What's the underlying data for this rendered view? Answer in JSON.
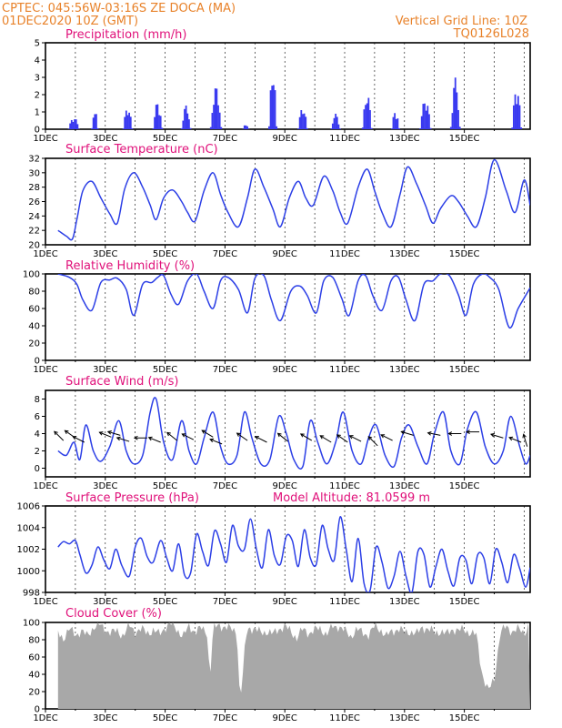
{
  "header": {
    "line1_left": "CPTEC:   045:56W-03:16S   ZE DOCA (MA)",
    "line2_left": "01DEC2020 10Z (GMT)",
    "line1_right": "Vertical Grid Line: 10Z",
    "line2_right": "TQ0126L028"
  },
  "colors": {
    "header": "#e8822a",
    "title": "#e0117a",
    "line": "#2c3fe6",
    "bar": "#3a3af0",
    "cloud": "#a8a8a8",
    "arrow": "#000000"
  },
  "x_tick_labels": [
    "1DEC",
    "3DEC",
    "5DEC",
    "7DEC",
    "9DEC",
    "11DEC",
    "13DEC",
    "15DEC"
  ],
  "model_altitude": "Model Altitude: 81.0599 m",
  "chart_data": [
    {
      "type": "bar",
      "title": "Precipitation (mm/h)",
      "ylim": [
        0,
        5
      ],
      "yticks": [
        "0",
        "1",
        "2",
        "3",
        "4",
        "5"
      ],
      "x_unit": "days since 01DEC 00Z",
      "events": [
        {
          "x": 0.95,
          "peak": 0.7,
          "width": 0.35
        },
        {
          "x": 1.65,
          "peak": 1.2,
          "width": 0.2
        },
        {
          "x": 2.75,
          "peak": 1.3,
          "width": 0.3
        },
        {
          "x": 3.75,
          "peak": 1.6,
          "width": 0.3
        },
        {
          "x": 4.7,
          "peak": 1.4,
          "width": 0.3
        },
        {
          "x": 5.7,
          "peak": 2.5,
          "width": 0.35
        },
        {
          "x": 6.7,
          "peak": 0.3,
          "width": 0.2
        },
        {
          "x": 7.6,
          "peak": 3.6,
          "width": 0.25
        },
        {
          "x": 8.6,
          "peak": 1.3,
          "width": 0.3
        },
        {
          "x": 9.7,
          "peak": 0.9,
          "width": 0.3
        },
        {
          "x": 10.75,
          "peak": 2.1,
          "width": 0.3
        },
        {
          "x": 11.7,
          "peak": 1.1,
          "width": 0.25
        },
        {
          "x": 12.7,
          "peak": 1.8,
          "width": 0.35
        },
        {
          "x": 13.7,
          "peak": 3.0,
          "width": 0.3
        },
        {
          "x": 15.75,
          "peak": 2.5,
          "width": 0.3
        }
      ]
    },
    {
      "type": "line",
      "title": "Surface Temperature (nC)",
      "ylim": [
        20,
        32
      ],
      "yticks": [
        "20",
        "22",
        "24",
        "26",
        "28",
        "30",
        "32"
      ],
      "x": [
        0.42,
        0.7,
        0.9,
        1.05,
        1.25,
        1.55,
        1.85,
        2.15,
        2.4,
        2.65,
        2.95,
        3.25,
        3.5,
        3.7,
        3.95,
        4.25,
        4.55,
        4.75,
        5.0,
        5.3,
        5.6,
        5.85,
        6.1,
        6.45,
        6.75,
        7.0,
        7.3,
        7.6,
        7.85,
        8.15,
        8.45,
        8.7,
        8.95,
        9.3,
        9.6,
        9.85,
        10.1,
        10.45,
        10.75,
        11.0,
        11.25,
        11.55,
        11.85,
        12.1,
        12.4,
        12.7,
        12.95,
        13.2,
        13.55,
        13.8,
        14.1,
        14.4,
        14.7,
        15.0,
        15.4,
        15.7,
        16.0,
        16.2
      ],
      "values": [
        22.0,
        21.2,
        20.8,
        23.5,
        27.5,
        28.8,
        26.5,
        24.3,
        23.0,
        27.8,
        30.0,
        28.0,
        25.5,
        23.5,
        26.5,
        27.6,
        26.0,
        24.5,
        23.3,
        27.5,
        30.0,
        27.0,
        24.5,
        22.5,
        26.5,
        30.5,
        28.0,
        25.0,
        22.5,
        26.5,
        28.8,
        26.5,
        25.5,
        29.5,
        27.5,
        24.5,
        23.0,
        28.0,
        30.5,
        27.5,
        24.5,
        22.5,
        27.0,
        30.8,
        28.5,
        25.5,
        23.0,
        25.0,
        26.8,
        26.0,
        24.0,
        22.5,
        26.5,
        31.8,
        27.5,
        24.5,
        29.0,
        25.5
      ]
    },
    {
      "type": "line",
      "title": "Relative Humidity (%)",
      "ylim": [
        0,
        100
      ],
      "yticks": [
        "0",
        "20",
        "40",
        "60",
        "80",
        "100"
      ],
      "x": [
        0.42,
        0.8,
        1.05,
        1.25,
        1.55,
        1.85,
        2.15,
        2.4,
        2.7,
        2.95,
        3.25,
        3.55,
        3.75,
        3.95,
        4.2,
        4.45,
        4.75,
        5.05,
        5.3,
        5.6,
        5.85,
        6.1,
        6.45,
        6.75,
        7.0,
        7.3,
        7.55,
        7.85,
        8.2,
        8.5,
        8.75,
        9.05,
        9.3,
        9.6,
        9.9,
        10.15,
        10.45,
        10.7,
        10.95,
        11.25,
        11.55,
        11.8,
        12.05,
        12.35,
        12.65,
        12.95,
        13.2,
        13.5,
        13.8,
        14.05,
        14.3,
        14.6,
        14.85,
        15.15,
        15.5,
        15.8,
        16.1,
        16.2
      ],
      "values": [
        100,
        96,
        88,
        70,
        58,
        90,
        93,
        95,
        82,
        52,
        88,
        90,
        96,
        98,
        76,
        65,
        92,
        100,
        80,
        60,
        92,
        96,
        82,
        55,
        95,
        98,
        70,
        46,
        80,
        86,
        75,
        55,
        92,
        96,
        72,
        52,
        92,
        98,
        74,
        58,
        92,
        96,
        70,
        46,
        88,
        92,
        100,
        98,
        76,
        52,
        88,
        100,
        96,
        82,
        38,
        60,
        78,
        84
      ]
    },
    {
      "type": "line",
      "title": "Surface Wind (m/s)",
      "ylim": [
        -1,
        9
      ],
      "yticks": [
        "0",
        "2",
        "4",
        "6",
        "8"
      ],
      "x": [
        0.42,
        0.7,
        0.95,
        1.15,
        1.35,
        1.6,
        1.85,
        2.15,
        2.45,
        2.7,
        2.95,
        3.25,
        3.5,
        3.7,
        3.95,
        4.25,
        4.55,
        4.8,
        5.05,
        5.3,
        5.6,
        5.85,
        6.1,
        6.4,
        6.65,
        6.9,
        7.2,
        7.5,
        7.8,
        8.05,
        8.3,
        8.6,
        8.85,
        9.1,
        9.4,
        9.7,
        9.95,
        10.25,
        10.55,
        10.8,
        11.05,
        11.35,
        11.65,
        11.9,
        12.15,
        12.45,
        12.75,
        13.0,
        13.3,
        13.55,
        13.85,
        14.1,
        14.4,
        14.7,
        15.0,
        15.3,
        15.55,
        15.85,
        16.05,
        16.2
      ],
      "values": [
        2.0,
        1.5,
        3.0,
        1.0,
        5.0,
        2.0,
        0.8,
        2.5,
        5.5,
        2.0,
        0.5,
        1.5,
        6.5,
        8.0,
        3.0,
        1.0,
        5.5,
        2.0,
        0.5,
        3.5,
        6.5,
        2.5,
        0.5,
        1.5,
        6.5,
        3.5,
        0.5,
        1.0,
        6.0,
        4.0,
        1.0,
        0.2,
        5.5,
        3.0,
        0.5,
        3.0,
        6.5,
        2.0,
        0.5,
        3.5,
        5.0,
        1.5,
        0.2,
        3.5,
        5.0,
        2.5,
        0.5,
        4.0,
        6.5,
        2.0,
        0.5,
        4.5,
        6.5,
        2.5,
        0.5,
        2.0,
        6.0,
        2.5,
        0.5,
        1.5
      ],
      "vectors": [
        {
          "x": 0.6,
          "speed": 3.2,
          "u": 1.0,
          "v": -1.0
        },
        {
          "x": 1.0,
          "speed": 3.5,
          "u": 1.0,
          "v": -0.7
        },
        {
          "x": 1.3,
          "speed": 3.0,
          "u": 1.0,
          "v": -0.5
        },
        {
          "x": 2.2,
          "speed": 3.6,
          "u": 1.0,
          "v": -0.4
        },
        {
          "x": 2.5,
          "speed": 3.8,
          "u": 1.0,
          "v": -0.3
        },
        {
          "x": 2.8,
          "speed": 3.1,
          "u": 1.0,
          "v": -0.3
        },
        {
          "x": 3.4,
          "speed": 3.5,
          "u": 1.0,
          "v": 0.0
        },
        {
          "x": 3.85,
          "speed": 3.0,
          "u": 1.0,
          "v": -0.4
        },
        {
          "x": 4.4,
          "speed": 3.2,
          "u": 1.0,
          "v": -0.8
        },
        {
          "x": 4.95,
          "speed": 3.3,
          "u": 1.0,
          "v": -0.5
        },
        {
          "x": 5.6,
          "speed": 3.6,
          "u": 1.0,
          "v": -0.6
        },
        {
          "x": 5.9,
          "speed": 2.8,
          "u": 1.0,
          "v": -0.4
        },
        {
          "x": 6.75,
          "speed": 3.2,
          "u": 1.0,
          "v": -0.7
        },
        {
          "x": 7.4,
          "speed": 3.0,
          "u": 1.0,
          "v": -0.5
        },
        {
          "x": 8.1,
          "speed": 3.1,
          "u": 1.0,
          "v": -0.8
        },
        {
          "x": 8.9,
          "speed": 3.2,
          "u": 1.0,
          "v": -0.6
        },
        {
          "x": 9.55,
          "speed": 3.0,
          "u": 1.0,
          "v": -0.6
        },
        {
          "x": 10.1,
          "speed": 3.0,
          "u": 1.0,
          "v": -0.7
        },
        {
          "x": 10.55,
          "speed": 3.1,
          "u": 1.0,
          "v": -0.5
        },
        {
          "x": 11.1,
          "speed": 2.6,
          "u": 1.0,
          "v": -1.0
        },
        {
          "x": 11.6,
          "speed": 3.2,
          "u": 1.0,
          "v": -0.5
        },
        {
          "x": 12.3,
          "speed": 3.8,
          "u": 1.0,
          "v": -0.3
        },
        {
          "x": 13.2,
          "speed": 3.8,
          "u": 1.0,
          "v": -0.2
        },
        {
          "x": 13.9,
          "speed": 4.0,
          "u": 1.0,
          "v": 0.0
        },
        {
          "x": 14.5,
          "speed": 4.2,
          "u": 1.0,
          "v": 0.0
        },
        {
          "x": 15.3,
          "speed": 3.5,
          "u": 1.0,
          "v": -0.3
        },
        {
          "x": 15.9,
          "speed": 3.0,
          "u": 1.0,
          "v": -0.4
        },
        {
          "x": 16.1,
          "speed": 2.5,
          "u": 0.3,
          "v": -1.0
        }
      ]
    },
    {
      "type": "line",
      "title": "Surface Pressure (hPa)",
      "ylim": [
        998,
        1006
      ],
      "yticks": [
        "998",
        "1000",
        "1002",
        "1004",
        "1006"
      ],
      "x": [
        0.42,
        0.6,
        0.8,
        1.0,
        1.15,
        1.35,
        1.55,
        1.75,
        1.95,
        2.15,
        2.35,
        2.55,
        2.8,
        3.0,
        3.2,
        3.4,
        3.6,
        3.85,
        4.05,
        4.25,
        4.45,
        4.65,
        4.85,
        5.05,
        5.25,
        5.45,
        5.65,
        5.85,
        6.05,
        6.25,
        6.45,
        6.65,
        6.85,
        7.05,
        7.25,
        7.45,
        7.65,
        7.85,
        8.05,
        8.25,
        8.45,
        8.65,
        8.85,
        9.05,
        9.25,
        9.45,
        9.65,
        9.85,
        10.05,
        10.25,
        10.45,
        10.65,
        10.85,
        11.05,
        11.25,
        11.45,
        11.65,
        11.85,
        12.05,
        12.25,
        12.45,
        12.65,
        12.85,
        13.05,
        13.25,
        13.45,
        13.65,
        13.85,
        14.05,
        14.25,
        14.45,
        14.65,
        14.85,
        15.05,
        15.25,
        15.45,
        15.65,
        15.85,
        16.05,
        16.2
      ],
      "values": [
        1002.2,
        1002.7,
        1002.5,
        1002.8,
        1001.5,
        999.8,
        1000.5,
        1002.2,
        1001.0,
        1000.2,
        1002.0,
        1000.5,
        999.5,
        1002.2,
        1003.0,
        1001.3,
        1000.8,
        1002.8,
        1001.2,
        1000.0,
        1002.5,
        999.6,
        999.8,
        1003.4,
        1001.8,
        1000.5,
        1003.7,
        1002.5,
        1000.8,
        1004.2,
        1002.3,
        1002.0,
        1004.8,
        1002.0,
        1000.3,
        1003.8,
        1001.4,
        1000.6,
        1003.2,
        1002.8,
        1000.4,
        1003.8,
        1001.2,
        1000.6,
        1004.2,
        1002.0,
        1001.0,
        1005.0,
        1002.0,
        999.0,
        1003.0,
        998.8,
        998.2,
        1002.2,
        1000.8,
        998.4,
        999.5,
        1001.8,
        999.5,
        998.0,
        1001.8,
        1001.5,
        998.5,
        1000.4,
        1002.0,
        1000.0,
        998.6,
        1001.2,
        1001.0,
        998.8,
        1001.5,
        1001.2,
        998.8,
        1002.0,
        1000.8,
        998.9,
        1001.5,
        1000.2,
        998.5,
        1000.3
      ]
    },
    {
      "type": "area",
      "title": "Cloud Cover (%)",
      "ylim": [
        0,
        100
      ],
      "yticks": [
        "0",
        "20",
        "40",
        "60",
        "80",
        "100"
      ],
      "x": [
        0.42,
        0.6,
        0.8,
        1.0,
        1.2,
        1.4,
        1.6,
        1.8,
        2.0,
        2.2,
        2.4,
        2.6,
        2.8,
        3.0,
        3.2,
        3.4,
        3.6,
        3.8,
        4.0,
        4.2,
        4.4,
        4.6,
        4.8,
        5.0,
        5.2,
        5.4,
        5.5,
        5.6,
        5.8,
        6.0,
        6.2,
        6.4,
        6.5,
        6.6,
        6.7,
        6.8,
        7.0,
        7.2,
        7.4,
        7.6,
        7.8,
        8.0,
        8.2,
        8.4,
        8.6,
        8.8,
        9.0,
        9.2,
        9.4,
        9.6,
        9.8,
        10.0,
        10.2,
        10.4,
        10.6,
        10.8,
        11.0,
        11.2,
        11.4,
        11.6,
        11.8,
        12.0,
        12.2,
        12.4,
        12.6,
        12.8,
        13.0,
        13.2,
        13.4,
        13.6,
        13.8,
        14.0,
        14.2,
        14.4,
        14.6,
        14.8,
        15.0,
        15.2,
        15.4,
        15.6,
        15.8,
        16.0,
        16.2
      ],
      "values": [
        88,
        82,
        92,
        86,
        90,
        84,
        95,
        97,
        92,
        88,
        90,
        85,
        96,
        90,
        92,
        88,
        91,
        86,
        95,
        98,
        92,
        84,
        95,
        90,
        93,
        88,
        35,
        92,
        97,
        95,
        92,
        90,
        8,
        40,
        85,
        95,
        92,
        88,
        90,
        86,
        93,
        95,
        90,
        82,
        92,
        88,
        91,
        93,
        86,
        95,
        96,
        90,
        84,
        92,
        88,
        86,
        95,
        92,
        84,
        90,
        93,
        88,
        90,
        86,
        95,
        92,
        88,
        90,
        86,
        93,
        90,
        92,
        88,
        85,
        40,
        20,
        35,
        88,
        95,
        90,
        92,
        88,
        100
      ]
    }
  ]
}
